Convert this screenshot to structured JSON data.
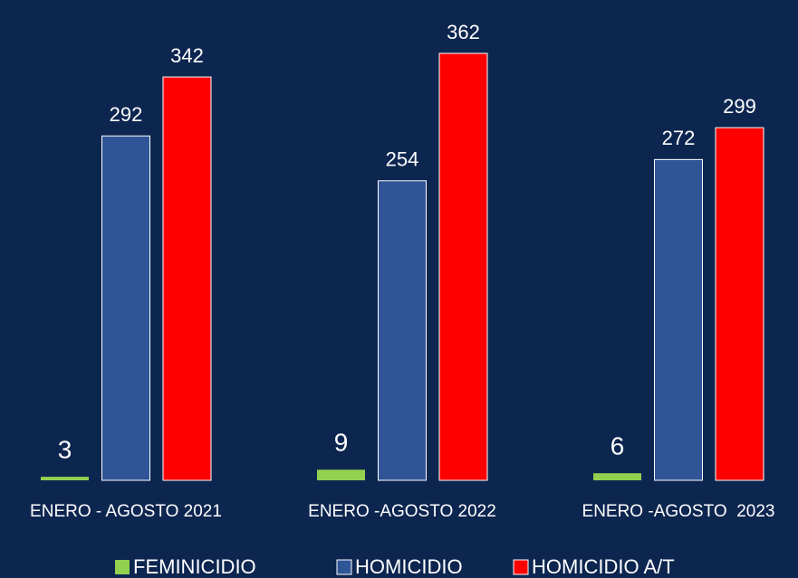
{
  "chart_data": {
    "type": "bar",
    "categories": [
      "ENERO - AGOSTO 2021",
      "ENERO -AGOSTO 2022",
      "ENERO -AGOSTO  2023"
    ],
    "series": [
      {
        "name": "FEMINICIDIO",
        "color": "#92d050",
        "values": [
          3,
          9,
          6
        ]
      },
      {
        "name": "HOMICIDIO",
        "color": "#2f5597",
        "values": [
          292,
          254,
          272
        ]
      },
      {
        "name": "HOMICIDIO A/T",
        "color": "#ff0000",
        "values": [
          342,
          362,
          299
        ]
      }
    ],
    "legend": "bottom"
  }
}
